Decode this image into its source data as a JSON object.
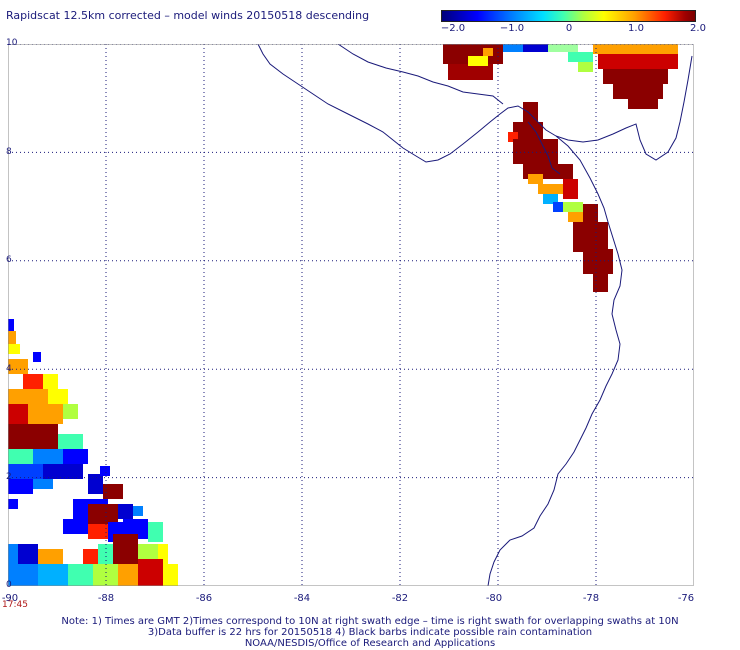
{
  "title": "Rapidscat 12.5km corrected – model winds 20150518 descending",
  "colorbar": {
    "ticks": [
      "−2.0",
      "−1.0",
      "0",
      "1.0",
      "2.0"
    ],
    "range": [
      -2.0,
      2.0
    ],
    "colors": [
      "#00007a",
      "#0000ff",
      "#0080ff",
      "#00e0ff",
      "#40ffb0",
      "#b0ff40",
      "#ffff00",
      "#ffa000",
      "#ff2000",
      "#a00000",
      "#7a0000"
    ]
  },
  "axes": {
    "lat_labels": [
      "10",
      "8",
      "6",
      "4",
      "2",
      "0"
    ],
    "lon_labels": [
      "-90",
      "-88",
      "-86",
      "-84",
      "-82",
      "-80",
      "-78",
      "-76"
    ],
    "lat_range": [
      0,
      10
    ],
    "lon_range": [
      -90,
      -76
    ],
    "grid": "dotted"
  },
  "swath_time": "17:45",
  "notes": [
    "Note: 1) Times are GMT 2)Times correspond to 10N at right swath edge – time is right swath for overlapping swaths at 10N",
    "3)Data buffer is 22 hrs for 20150518 4) Black barbs indicate possible rain contamination",
    "NOAA/NESDIS/Office of Research and Applications"
  ]
}
